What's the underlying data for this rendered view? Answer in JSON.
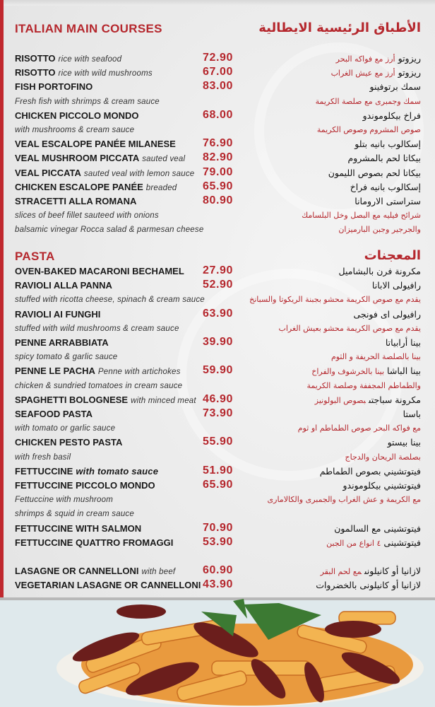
{
  "sections": [
    {
      "title_en": "ITALIAN MAIN COURSES",
      "title_ar": "الأطباق الرئيسية الايطالية",
      "groups": [
        [
          {
            "name": "RISOTTO",
            "desc": "rice with seafood",
            "price": "72.90",
            "ar_name": "ريزوتو",
            "ar_desc": "أرز مع فواكه البحر"
          },
          {
            "name": "RISOTTO",
            "desc": "rice with wild mushrooms",
            "price": "67.00",
            "ar_name": "ريزوتو",
            "ar_desc": "أرز مع عيش الغراب"
          },
          {
            "name": "FISH PORTOFINO",
            "desc": "",
            "price": "83.00",
            "ar_name": "سمك برتوفينو",
            "ar_desc": ""
          },
          {
            "note": "Fresh fish with shrimps & cream sauce",
            "ar_note": "سمك وجمبرى مع صلصة الكريمة"
          },
          {
            "name": "CHICKEN PICCOLO MONDO",
            "desc": "",
            "price": "68.00",
            "ar_name": "فراخ بيكلوموندو",
            "ar_desc": ""
          },
          {
            "note": "with mushrooms & cream sauce",
            "ar_note": "صوص المشروم وصوص الكريمة"
          },
          {
            "name": "VEAL ESCALOPE PANÉE MILANESE",
            "desc": "",
            "price": "76.90",
            "ar_name": "إسكالوب بانيه بتلو",
            "ar_desc": ""
          },
          {
            "name": "VEAL MUSHROOM PICCATA",
            "desc": "sauted veal",
            "price": "82.90",
            "ar_name": "بيكاتا لحم بالمشروم",
            "ar_desc": ""
          },
          {
            "name": "VEAL PICCATA",
            "desc": "sauted veal with lemon sauce",
            "price": "79.00",
            "ar_name": "بيكاتا لحم بصوص الليمون",
            "ar_desc": ""
          },
          {
            "name": "CHICKEN ESCALOPE PANÉE",
            "desc": "breaded",
            "price": "65.90",
            "ar_name": "إسكالوب بانيه فراخ",
            "ar_desc": ""
          },
          {
            "name": "STRACETTI ALLA ROMANA",
            "desc": "",
            "price": "80.90",
            "ar_name": "ستراستى الارومانا",
            "ar_desc": ""
          },
          {
            "note": "slices of beef fillet sauteed with onions",
            "ar_note": "شرائح فيليه مع البصل وخل البلسامك"
          },
          {
            "note": "balsamic vinegar Rocca salad & parmesan cheese",
            "ar_note": "والجرجير وجبن البارميزان"
          }
        ]
      ]
    },
    {
      "title_en": "PASTA",
      "title_ar": "المعجنات",
      "groups": [
        [
          {
            "name": "OVEN-BAKED MACARONI BECHAMEL",
            "desc": "",
            "price": "27.90",
            "ar_name": "مكرونة فرن بالبشاميل",
            "ar_desc": ""
          },
          {
            "name": "RAVIOLI ALLA PANNA",
            "desc": "",
            "price": "52.90",
            "ar_name": "رافيولى الابانا",
            "ar_desc": ""
          },
          {
            "note": "stuffed with ricotta cheese, spinach & cream sauce",
            "ar_note": "يقدم مع صوص الكريمة محشو بجبنة الريكوتا والسبانخ"
          },
          {
            "name": "RAVIOLI AI FUNGHI",
            "desc": "",
            "price": "63.90",
            "ar_name": "رافيولى اى فونجى",
            "ar_desc": ""
          },
          {
            "note": "stuffed with wild mushrooms & cream sauce",
            "ar_note": "يقدم مع صوص الكريمة محشو بعيش الغراب"
          },
          {
            "name": "PENNE ARRABBIATA",
            "desc": "",
            "price": "39.90",
            "ar_name": "بينا أرابياتا",
            "ar_desc": ""
          },
          {
            "note": "spicy tomato & garlic sauce",
            "ar_note": "بينا بالصلصة الحريفة و الثوم"
          },
          {
            "name": "PENNE LE PACHA",
            "desc": "Penne with artichokes",
            "price": "59.90",
            "ar_name": "بينا الباشا",
            "ar_desc": "بينا بالخرشوف والفراخ"
          },
          {
            "note": "chicken & sundried tomatoes in cream sauce",
            "ar_note": "والطماطم المجففة وصلصة الكريمة"
          },
          {
            "name": "SPAGHETTI BOLOGNESE",
            "desc": "with minced meat",
            "price": "46.90",
            "ar_name": "مكرونة سباجتى",
            "ar_desc": "بصوص البولونيز"
          },
          {
            "name": "SEAFOOD PASTA",
            "desc": "",
            "price": "73.90",
            "ar_name": "باستا",
            "ar_desc": ""
          },
          {
            "note": "with tomato or garlic sauce",
            "ar_note": "مع فواكه البحر  صوص الطماطم او ثوم"
          },
          {
            "name": "CHICKEN PESTO PASTA",
            "desc": "",
            "price": "55.90",
            "ar_name": "بينا بيستو",
            "ar_desc": ""
          },
          {
            "note": "with fresh basil",
            "ar_note": "بصلصة الريحان والدجاج"
          },
          {
            "name": "FETTUCCINE",
            "desc": "with tomato sauce",
            "desc_strong": true,
            "price": "51.90",
            "ar_name": "فيتوتشيني بصوص الطماطم",
            "ar_desc": ""
          },
          {
            "name": "FETTUCCINE PICCOLO MONDO",
            "desc": "",
            "price": "65.90",
            "ar_name": "فيتوتشيني بيكلوموندو",
            "ar_desc": ""
          },
          {
            "note": "Fettuccine with mushroom",
            "ar_note": "مع الكريمة و عش الغراب والجمبرى والكالامارى"
          },
          {
            "note": " shrimps & squid in cream sauce",
            "ar_note": ""
          },
          {
            "name": "FETTUCCINE WITH SALMON",
            "desc": "",
            "price": "70.90",
            "ar_name": "فيتوتشينى مع السالمون",
            "ar_desc": ""
          },
          {
            "name": "FETTUCCINE QUATTRO FROMAGGI",
            "desc": "",
            "price": "53.90",
            "ar_name": "فيتوتشينى",
            "ar_desc": "٤ انواع من الجبن"
          }
        ],
        [
          {
            "name": "LASAGNE OR CANNELLONI",
            "desc": "with beef",
            "price": "60.90",
            "ar_name": "لازانيا أو كانيلونى",
            "ar_desc": "مع لحم البقر"
          },
          {
            "name": "VEGETARIAN LASAGNE OR CANNELLONI",
            "desc": "",
            "price": "43.90",
            "ar_name": "لازانيا أو كانيلونى بالخضروات",
            "ar_desc": ""
          }
        ]
      ]
    }
  ],
  "colors": {
    "accent": "#b5272d",
    "text": "#1a1a1a",
    "background": "#ececec"
  },
  "photo": {
    "subject": "penne-with-sundried-tomatoes-photo"
  }
}
